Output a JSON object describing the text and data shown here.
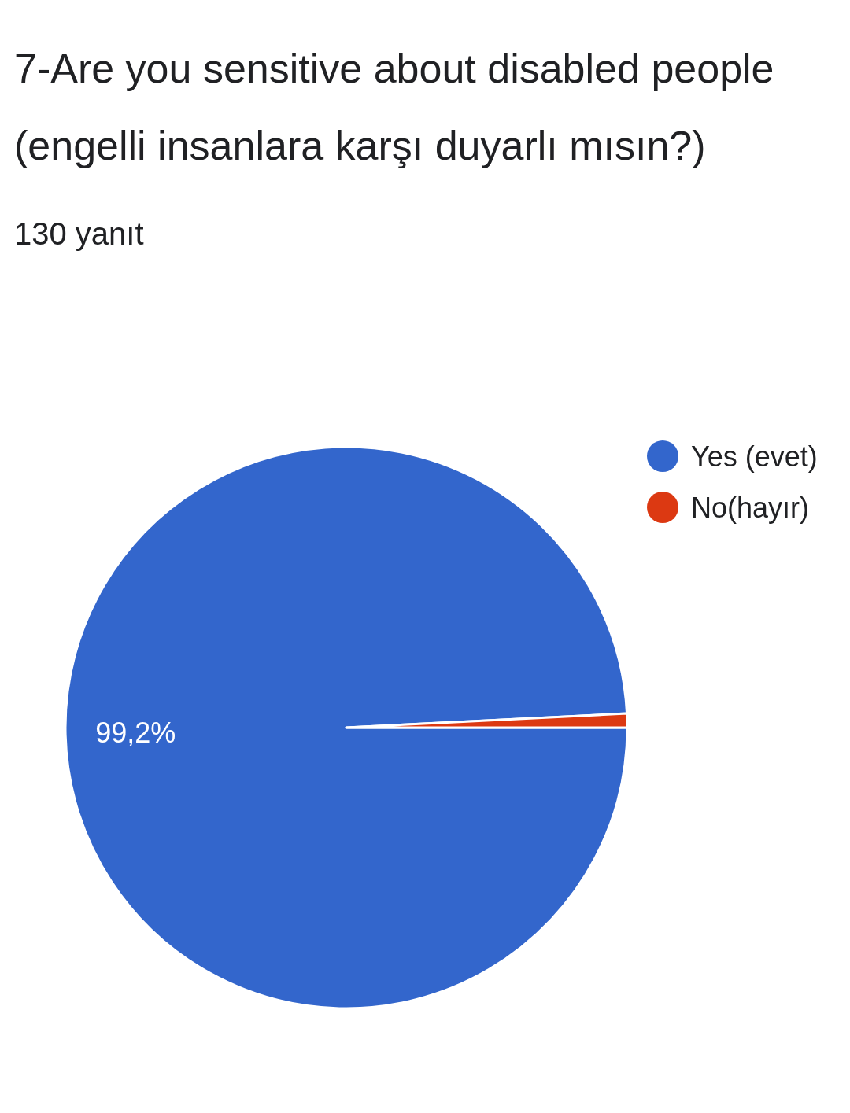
{
  "chart_data": {
    "type": "pie",
    "title": "7-Are you sensitive about disabled people (engelli insanlara karşı duyarlı mısın?)",
    "subtitle": "130 yanıt",
    "categories": [
      "Yes (evet)",
      "No(hayır)"
    ],
    "values": [
      99.2,
      0.8
    ],
    "colors": [
      "#3366cc",
      "#dc3912"
    ],
    "value_labels": [
      "99,2%",
      null
    ],
    "legend": "top right"
  }
}
